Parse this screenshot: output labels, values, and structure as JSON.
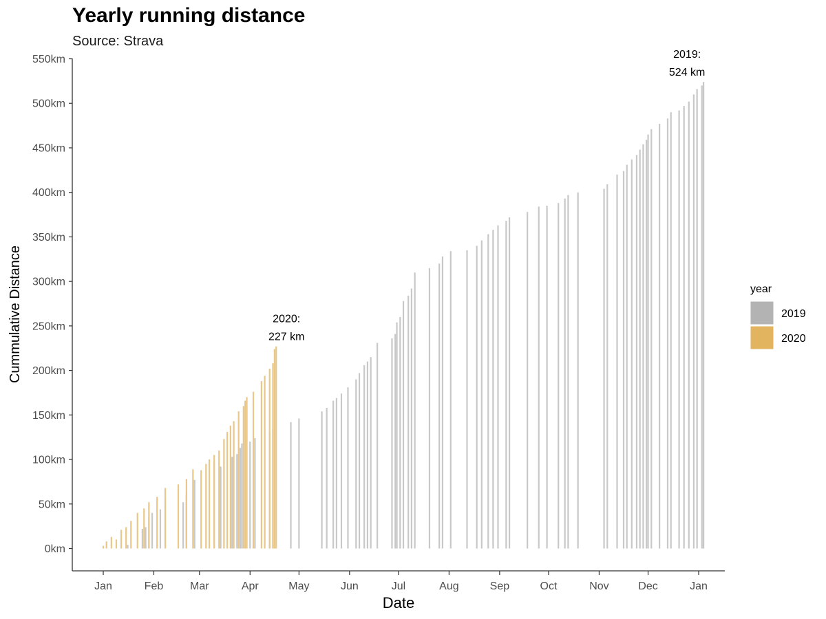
{
  "chart_data": {
    "type": "bar",
    "title": "Yearly running distance",
    "subtitle": "Source: Strava",
    "xlabel": "Date",
    "ylabel": "Cummulative Distance",
    "ylim": [
      0,
      550
    ],
    "y_ticks": [
      0,
      50,
      100,
      150,
      200,
      250,
      300,
      350,
      400,
      450,
      500,
      550
    ],
    "y_tick_labels": [
      "0km",
      "50km",
      "100km",
      "150km",
      "200km",
      "250km",
      "300km",
      "350km",
      "400km",
      "450km",
      "500km",
      "550km"
    ],
    "x_tick_labels": [
      "Jan",
      "Feb",
      "Mar",
      "Apr",
      "May",
      "Jun",
      "Jul",
      "Aug",
      "Sep",
      "Oct",
      "Nov",
      "Dec",
      "Jan"
    ],
    "legend": {
      "title": "year",
      "position": "right",
      "entries": [
        {
          "label": "2019",
          "color": "#b3b3b3"
        },
        {
          "label": "2020",
          "color": "#e3b460"
        }
      ]
    },
    "annotations": [
      {
        "line1": "2020:",
        "line2": "227 km",
        "x": "2020-04-16",
        "y": 227
      },
      {
        "line1": "2019:",
        "line2": "524 km",
        "x": "2019-12-27",
        "y": 524
      }
    ],
    "series": [
      {
        "name": "2019",
        "color": "#c8c8c8",
        "points": [
          [
            "2019-01-16",
            4
          ],
          [
            "2019-01-25",
            22
          ],
          [
            "2019-01-27",
            24
          ],
          [
            "2019-01-29",
            35
          ],
          [
            "2019-01-31",
            40
          ],
          [
            "2019-02-05",
            44
          ],
          [
            "2019-02-08",
            56
          ],
          [
            "2019-02-19",
            52
          ],
          [
            "2019-02-21",
            61
          ],
          [
            "2019-02-26",
            77
          ],
          [
            "2019-03-10",
            97
          ],
          [
            "2019-03-14",
            92
          ],
          [
            "2019-03-21",
            103
          ],
          [
            "2019-03-24",
            106
          ],
          [
            "2019-03-26",
            113
          ],
          [
            "2019-03-27",
            118
          ],
          [
            "2019-04-01",
            120
          ],
          [
            "2019-04-04",
            124
          ],
          [
            "2019-04-13",
            132
          ],
          [
            "2019-04-15",
            134
          ],
          [
            "2019-04-26",
            142
          ],
          [
            "2019-05-01",
            146
          ],
          [
            "2019-05-15",
            154
          ],
          [
            "2019-05-18",
            158
          ],
          [
            "2019-05-22",
            166
          ],
          [
            "2019-05-24",
            169
          ],
          [
            "2019-05-27",
            174
          ],
          [
            "2019-05-31",
            181
          ],
          [
            "2019-06-05",
            190
          ],
          [
            "2019-06-07",
            197
          ],
          [
            "2019-06-10",
            206
          ],
          [
            "2019-06-12",
            210
          ],
          [
            "2019-06-14",
            215
          ],
          [
            "2019-06-18",
            231
          ],
          [
            "2019-06-27",
            236
          ],
          [
            "2019-06-29",
            241
          ],
          [
            "2019-06-30",
            254
          ],
          [
            "2019-07-02",
            260
          ],
          [
            "2019-07-04",
            278
          ],
          [
            "2019-07-07",
            284
          ],
          [
            "2019-07-09",
            292
          ],
          [
            "2019-07-11",
            310
          ],
          [
            "2019-07-20",
            315
          ],
          [
            "2019-07-26",
            320
          ],
          [
            "2019-07-28",
            328
          ],
          [
            "2019-08-02",
            334
          ],
          [
            "2019-08-12",
            335
          ],
          [
            "2019-08-18",
            340
          ],
          [
            "2019-08-21",
            346
          ],
          [
            "2019-08-25",
            353
          ],
          [
            "2019-08-28",
            358
          ],
          [
            "2019-08-31",
            363
          ],
          [
            "2019-09-05",
            368
          ],
          [
            "2019-09-07",
            372
          ],
          [
            "2019-09-18",
            378
          ],
          [
            "2019-09-25",
            384
          ],
          [
            "2019-09-30",
            385
          ],
          [
            "2019-10-07",
            388
          ],
          [
            "2019-10-11",
            393
          ],
          [
            "2019-10-13",
            397
          ],
          [
            "2019-10-19",
            400
          ],
          [
            "2019-11-04",
            404
          ],
          [
            "2019-11-06",
            409
          ],
          [
            "2019-11-12",
            420
          ],
          [
            "2019-11-16",
            424
          ],
          [
            "2019-11-18",
            431
          ],
          [
            "2019-11-21",
            437
          ],
          [
            "2019-11-24",
            442
          ],
          [
            "2019-11-26",
            448
          ],
          [
            "2019-11-28",
            454
          ],
          [
            "2019-11-30",
            459
          ],
          [
            "2019-12-01",
            465
          ],
          [
            "2019-12-03",
            471
          ],
          [
            "2019-12-08",
            477
          ],
          [
            "2019-12-13",
            483
          ],
          [
            "2019-12-15",
            490
          ],
          [
            "2019-12-20",
            492
          ],
          [
            "2019-12-23",
            497
          ],
          [
            "2019-12-26",
            502
          ],
          [
            "2019-12-29",
            510
          ],
          [
            "2019-12-31",
            516
          ],
          [
            "2020-01-03",
            520
          ],
          [
            "2020-01-04",
            524
          ]
        ]
      },
      {
        "name": "2020",
        "color": "#e9c789",
        "points": [
          [
            "2020-01-01",
            3
          ],
          [
            "2020-01-03",
            8
          ],
          [
            "2020-01-06",
            13
          ],
          [
            "2020-01-09",
            10
          ],
          [
            "2020-01-12",
            21
          ],
          [
            "2020-01-15",
            24
          ],
          [
            "2020-01-18",
            31
          ],
          [
            "2020-01-22",
            40
          ],
          [
            "2020-01-26",
            45
          ],
          [
            "2020-01-29",
            52
          ],
          [
            "2020-02-03",
            58
          ],
          [
            "2020-02-08",
            68
          ],
          [
            "2020-02-16",
            72
          ],
          [
            "2020-02-21",
            78
          ],
          [
            "2020-02-25",
            89
          ],
          [
            "2020-03-01",
            88
          ],
          [
            "2020-03-04",
            95
          ],
          [
            "2020-03-06",
            100
          ],
          [
            "2020-03-09",
            105
          ],
          [
            "2020-03-12",
            110
          ],
          [
            "2020-03-15",
            123
          ],
          [
            "2020-03-17",
            131
          ],
          [
            "2020-03-19",
            138
          ],
          [
            "2020-03-21",
            143
          ],
          [
            "2020-03-24",
            154
          ],
          [
            "2020-03-27",
            160
          ],
          [
            "2020-03-28",
            166
          ],
          [
            "2020-03-29",
            170
          ],
          [
            "2020-04-02",
            176
          ],
          [
            "2020-04-07",
            188
          ],
          [
            "2020-04-09",
            194
          ],
          [
            "2020-04-12",
            202
          ],
          [
            "2020-04-14",
            208
          ],
          [
            "2020-04-15",
            224
          ],
          [
            "2020-04-16",
            227
          ]
        ]
      }
    ]
  }
}
